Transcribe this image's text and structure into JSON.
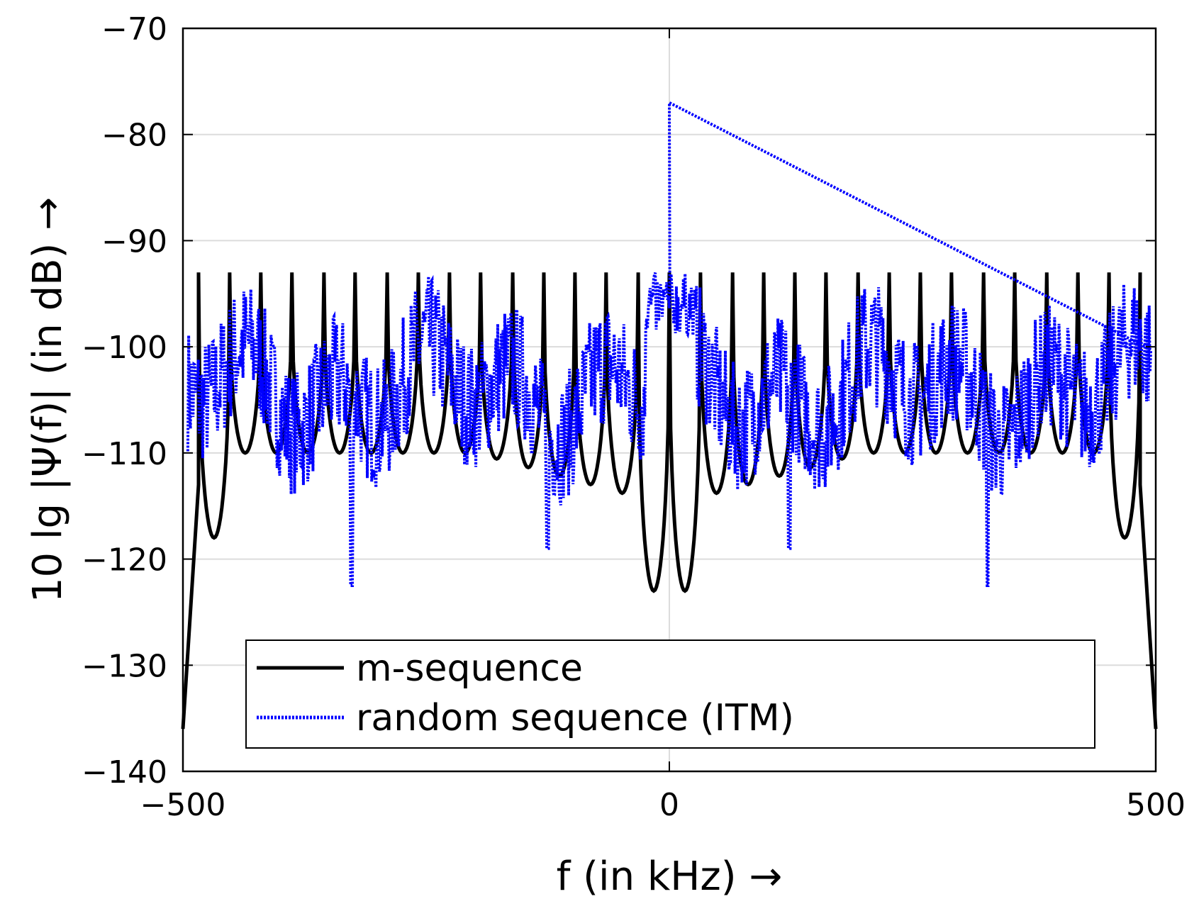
{
  "chart_data": {
    "type": "line",
    "xlabel": "f  (in kHz) →",
    "ylabel": "10 lg |Ψ(f)|  (in dB) →",
    "xlim": [
      -500,
      500
    ],
    "ylim": [
      -140,
      -70
    ],
    "xticks": [
      -500,
      0,
      500
    ],
    "yticks": [
      -140,
      -130,
      -120,
      -110,
      -100,
      -90,
      -80,
      -70
    ],
    "xtick_labels": [
      "−500",
      "0",
      "500"
    ],
    "ytick_labels": [
      "−140",
      "−130",
      "−120",
      "−110",
      "−100",
      "−90",
      "−80",
      "−70"
    ],
    "grid": true,
    "legend_position": "bottom-center",
    "series": [
      {
        "name": "m-sequence",
        "color": "#000000",
        "style": "solid",
        "description_values": {
          "peak_positions_khz": [
            -484,
            -452,
            -420,
            -388,
            -355,
            -323,
            -290,
            -258,
            -226,
            -194,
            -161,
            -129,
            -97,
            -65,
            -32,
            0,
            32,
            65,
            97,
            129,
            161,
            194,
            226,
            258,
            290,
            323,
            355,
            388,
            420,
            452,
            484
          ],
          "peak_level_db": -93,
          "center_dip_db": -123,
          "edge_level_db": -136
        }
      },
      {
        "name": "random sequence (ITM)",
        "color": "#0000ff",
        "style": "dotted",
        "description_values": {
          "center_spike_db": -77,
          "typical_range_db": [
            -113,
            -97
          ],
          "deep_dips": [
            [
              -327,
              -122.5
            ],
            [
              -125,
              -119
            ],
            [
              123,
              -119
            ],
            [
              327,
              -122.5
            ]
          ]
        }
      }
    ]
  }
}
